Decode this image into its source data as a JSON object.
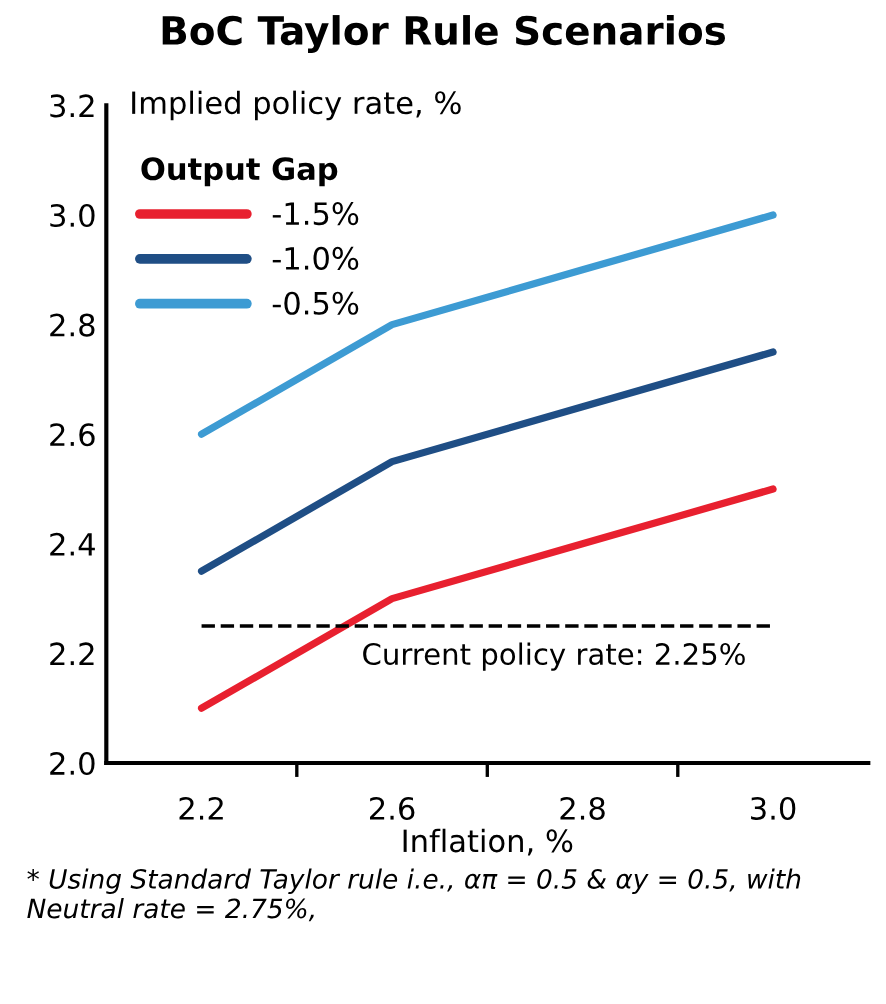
{
  "chart_data": {
    "type": "line",
    "title": "BoC Taylor Rule Scenarios",
    "xlabel": "Inflation, %",
    "ylabel": "Implied policy rate, %",
    "legend_title": "Output Gap",
    "categories": [
      "2.2",
      "2.6",
      "2.8",
      "3.0"
    ],
    "series": [
      {
        "name": "-1.5%",
        "color": "#e8202f",
        "values": [
          2.1,
          2.3,
          2.4,
          2.5
        ]
      },
      {
        "name": "-1.0%",
        "color": "#1f4e85",
        "values": [
          2.35,
          2.55,
          2.65,
          2.75
        ]
      },
      {
        "name": "-0.5%",
        "color": "#3d9bd3",
        "values": [
          2.6,
          2.8,
          2.9,
          3.0
        ]
      }
    ],
    "ylim": [
      2.0,
      3.2
    ],
    "yticks": [
      {
        "value": 2.0,
        "label": "2.0"
      },
      2.2,
      2.4,
      2.6,
      2.8,
      {
        "value": 3.0,
        "label": "3.0"
      },
      3.2
    ],
    "ref_lines": [
      {
        "axis": "y",
        "value": 2.25,
        "label": "Current policy rate: 2.25%",
        "color": "#000000",
        "line_style": "dashed"
      }
    ],
    "annotations": [
      "* Using Standard Taylor rule i.e., απ = 0.5 & αy = 0.5, with Neutral rate = 2.75%,"
    ],
    "legend": "top left",
    "grid": false,
    "marker": "none",
    "line_style": "solid"
  }
}
